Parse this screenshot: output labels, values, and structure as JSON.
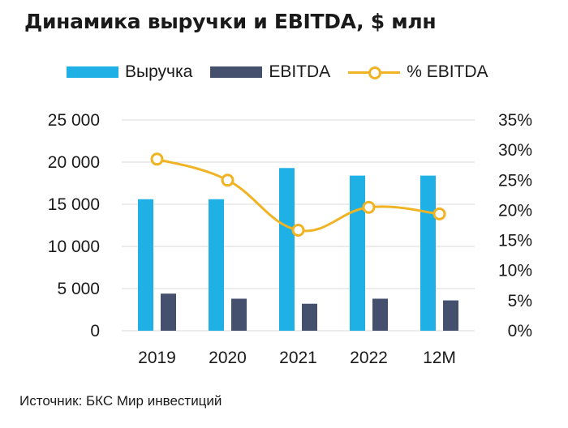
{
  "title": "Динамика выручки и EBITDA, $ млн",
  "source": "Источник: БКС Мир инвестиций",
  "colors": {
    "revenue": "#1fb1e6",
    "ebitda": "#44506e",
    "margin": "#f0b323",
    "grid": "#d9d9d9"
  },
  "chart_data": {
    "type": "bar",
    "title": "Динамика выручки и EBITDA, $ млн",
    "categories": [
      "2019",
      "2020",
      "2021",
      "2022",
      "12M"
    ],
    "series": [
      {
        "name": "Выручка",
        "type": "bar",
        "axis": "left",
        "values": [
          15600,
          15600,
          19300,
          18400,
          18400
        ]
      },
      {
        "name": "EBITDA",
        "type": "bar",
        "axis": "left",
        "values": [
          4400,
          3800,
          3200,
          3800,
          3600
        ]
      },
      {
        "name": "% EBITDA",
        "type": "line",
        "axis": "right",
        "values": [
          28.5,
          25.0,
          16.7,
          20.5,
          19.4
        ]
      }
    ],
    "ylim": [
      0,
      25000
    ],
    "y_ticks": [
      "0",
      "5 000",
      "10 000",
      "15 000",
      "20 000",
      "25 000"
    ],
    "y2lim": [
      0,
      35
    ],
    "y2_ticks": [
      "0%",
      "5%",
      "10%",
      "15%",
      "20%",
      "25%",
      "30%",
      "35%"
    ],
    "grid": true,
    "legend_position": "top"
  }
}
